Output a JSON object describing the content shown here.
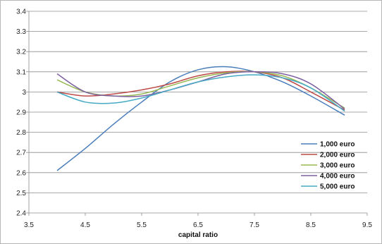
{
  "chart_data": {
    "type": "line",
    "title": "",
    "xlabel": "capital ratio",
    "ylabel": "",
    "xlim": [
      3.5,
      9.5
    ],
    "ylim": [
      2.4,
      3.4
    ],
    "x_ticks": [
      "3.5",
      "4.5",
      "5.5",
      "6.5",
      "7.5",
      "8.5",
      "9.5"
    ],
    "y_ticks": [
      "2.4",
      "2.5",
      "2.6",
      "2.7",
      "2.8",
      "2.9",
      "3",
      "3.1",
      "3.2",
      "3.3",
      "3.4"
    ],
    "grid": "horizontal",
    "legend_position": "right",
    "smooth": true,
    "series": [
      {
        "name": "1,000 euro",
        "color": "#4a7ebb",
        "x": [
          4.0,
          4.5,
          5.0,
          5.5,
          6.0,
          6.5,
          7.0,
          7.5,
          8.0,
          8.5,
          9.1
        ],
        "y": [
          2.61,
          2.72,
          2.84,
          2.95,
          3.05,
          3.11,
          3.125,
          3.1,
          3.05,
          2.98,
          2.885
        ]
      },
      {
        "name": "2,000 euro",
        "color": "#be4b48",
        "x": [
          4.0,
          4.5,
          5.0,
          5.5,
          6.0,
          6.5,
          7.0,
          7.5,
          8.0,
          8.5,
          9.1
        ],
        "y": [
          3.0,
          2.98,
          2.99,
          3.01,
          3.04,
          3.08,
          3.1,
          3.1,
          3.07,
          3.0,
          2.91
        ]
      },
      {
        "name": "3,000 euro",
        "color": "#98b954",
        "x": [
          4.0,
          4.5,
          5.0,
          5.5,
          6.0,
          6.5,
          7.0,
          7.5,
          8.0,
          8.5,
          9.1
        ],
        "y": [
          3.06,
          3.0,
          2.98,
          2.99,
          3.03,
          3.07,
          3.095,
          3.1,
          3.08,
          3.02,
          2.92
        ]
      },
      {
        "name": "4,000 euro",
        "color": "#7d60a0",
        "x": [
          4.0,
          4.5,
          5.0,
          5.5,
          6.0,
          6.5,
          7.0,
          7.5,
          8.0,
          8.5,
          9.1
        ],
        "y": [
          3.09,
          3.0,
          2.98,
          2.98,
          3.01,
          3.05,
          3.09,
          3.1,
          3.09,
          3.04,
          2.915
        ]
      },
      {
        "name": "5,000 euro",
        "color": "#46aac5",
        "x": [
          4.0,
          4.5,
          5.0,
          5.5,
          6.0,
          6.5,
          7.0,
          7.5,
          8.0,
          8.5,
          9.1
        ],
        "y": [
          3.0,
          2.95,
          2.945,
          2.97,
          3.01,
          3.05,
          3.075,
          3.085,
          3.07,
          3.02,
          2.905
        ]
      }
    ]
  }
}
